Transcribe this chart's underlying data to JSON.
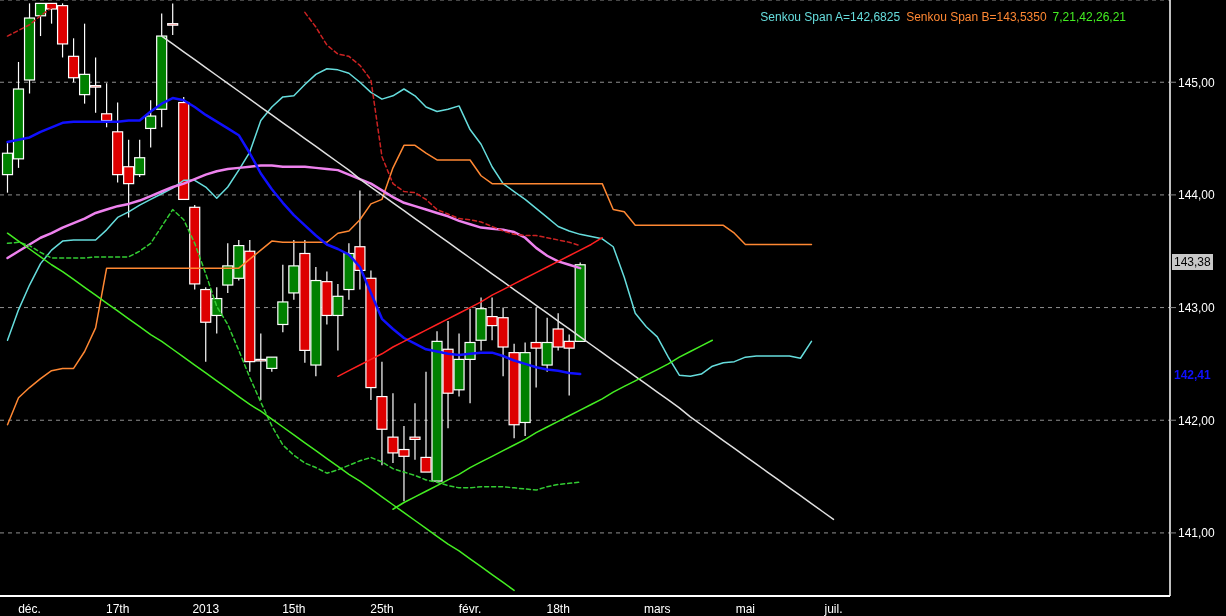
{
  "chart_data": {
    "type": "candlestick",
    "categories": [
      null,
      null,
      "déc.",
      null,
      null,
      null,
      null,
      null,
      null,
      null,
      "17th",
      null,
      null,
      null,
      null,
      null,
      null,
      null,
      "2013",
      null,
      null,
      null,
      null,
      null,
      null,
      null,
      "15th",
      null,
      null,
      null,
      null,
      null,
      null,
      null,
      "25th",
      null,
      null,
      null,
      null,
      null,
      null,
      null,
      "févr.",
      null,
      null,
      null,
      null,
      null,
      null,
      null,
      "18th",
      null,
      null,
      null,
      null,
      null,
      null,
      null,
      null,
      "mars",
      null,
      null,
      null,
      null,
      null,
      null,
      null,
      "mai",
      null,
      null,
      null,
      null,
      null,
      null,
      null,
      "juil."
    ],
    "ohlc": [
      [
        144.18,
        144.46,
        144.02,
        144.37
      ],
      [
        144.32,
        145.18,
        144.24,
        144.94
      ],
      [
        145.02,
        145.7,
        144.9,
        145.57
      ],
      [
        145.59,
        145.7,
        145.41,
        145.7
      ],
      [
        145.7,
        145.7,
        145.52,
        145.65
      ],
      [
        145.68,
        145.7,
        145.22,
        145.34
      ],
      [
        145.23,
        145.39,
        145.0,
        145.04
      ],
      [
        144.89,
        145.52,
        144.81,
        145.07
      ],
      [
        144.97,
        145.22,
        144.73,
        144.97
      ],
      [
        144.72,
        144.99,
        144.6,
        144.66
      ],
      [
        144.56,
        144.82,
        144.11,
        144.18
      ],
      [
        144.25,
        144.49,
        143.8,
        144.1
      ],
      [
        144.18,
        144.49,
        144.16,
        144.33
      ],
      [
        144.59,
        144.84,
        144.42,
        144.7
      ],
      [
        144.76,
        145.61,
        144.6,
        145.41
      ],
      [
        145.52,
        145.7,
        145.42,
        145.51
      ],
      [
        144.82,
        144.87,
        143.96,
        143.96
      ],
      [
        143.89,
        143.91,
        143.16,
        143.21
      ],
      [
        143.16,
        143.18,
        142.52,
        142.87
      ],
      [
        142.93,
        143.18,
        142.77,
        143.08
      ],
      [
        143.2,
        143.57,
        143.13,
        143.37
      ],
      [
        143.26,
        143.6,
        143.24,
        143.55
      ],
      [
        143.5,
        143.6,
        142.43,
        142.52
      ],
      [
        142.54,
        142.77,
        142.18,
        142.54
      ],
      [
        142.46,
        142.56,
        142.43,
        142.56
      ],
      [
        142.85,
        143.38,
        142.78,
        143.05
      ],
      [
        143.13,
        143.6,
        143.07,
        143.37
      ],
      [
        143.48,
        143.6,
        142.51,
        142.62
      ],
      [
        142.49,
        143.36,
        142.39,
        143.24
      ],
      [
        143.23,
        143.32,
        142.85,
        142.93
      ],
      [
        142.93,
        143.21,
        142.62,
        143.1
      ],
      [
        143.16,
        143.57,
        143.07,
        143.48
      ],
      [
        143.54,
        144.04,
        143.16,
        143.33
      ],
      [
        143.26,
        143.33,
        142.18,
        142.29
      ],
      [
        142.21,
        142.52,
        141.6,
        141.92
      ],
      [
        141.85,
        142.24,
        141.62,
        141.71
      ],
      [
        141.74,
        141.95,
        141.28,
        141.68
      ],
      [
        141.85,
        142.15,
        141.65,
        141.83
      ],
      [
        141.67,
        142.43,
        141.54,
        141.54
      ],
      [
        141.46,
        142.79,
        141.46,
        142.7
      ],
      [
        142.63,
        142.88,
        141.93,
        142.24
      ],
      [
        142.27,
        142.77,
        142.21,
        142.54
      ],
      [
        142.54,
        142.99,
        142.15,
        142.69
      ],
      [
        142.71,
        143.09,
        142.62,
        142.99
      ],
      [
        142.92,
        143.09,
        142.71,
        142.84
      ],
      [
        142.91,
        143.0,
        142.39,
        142.65
      ],
      [
        142.6,
        142.68,
        141.84,
        141.96
      ],
      [
        141.98,
        142.69,
        141.86,
        142.6
      ],
      [
        142.69,
        143.0,
        142.29,
        142.64
      ],
      [
        142.49,
        142.91,
        142.43,
        142.69
      ],
      [
        142.81,
        142.95,
        142.62,
        142.65
      ],
      [
        142.7,
        142.76,
        142.22,
        142.64
      ],
      [
        142.7,
        143.4,
        142.7,
        143.38
      ],
      null,
      null,
      null,
      null,
      null,
      null,
      null,
      null,
      null,
      null,
      null,
      null,
      null,
      null,
      null,
      null,
      null,
      null,
      null,
      null,
      null,
      null,
      null
    ],
    "colors": [
      "#008000",
      "#008000",
      "#008000",
      "#008000",
      "#dd0000",
      "#dd0000",
      "#dd0000",
      "#008000",
      "#dd0000",
      "#dd0000",
      "#dd0000",
      "#dd0000",
      "#008000",
      "#008000",
      "#008000",
      "#dd0000",
      "#dd0000",
      "#dd0000",
      "#dd0000",
      "#008000",
      "#008000",
      "#008000",
      "#dd0000",
      "#dd0000",
      "#008000",
      "#008000",
      "#008000",
      "#dd0000",
      "#008000",
      "#dd0000",
      "#008000",
      "#008000",
      "#dd0000",
      "#dd0000",
      "#dd0000",
      "#dd0000",
      "#dd0000",
      "#dd0000",
      "#dd0000",
      "#008000",
      "#dd0000",
      "#008000",
      "#008000",
      "#008000",
      "#dd0000",
      "#dd0000",
      "#dd0000",
      "#008000",
      "#dd0000",
      "#008000",
      "#dd0000",
      "#dd0000",
      "#008000",
      null,
      null,
      null,
      null,
      null,
      null,
      null,
      null,
      null,
      null,
      null,
      null,
      null,
      null,
      null,
      null,
      null,
      null,
      null,
      null,
      null,
      null,
      null
    ],
    "series": [
      {
        "type": "line",
        "name": "Senkou Span A=142,6825",
        "color": "#66dddd",
        "values": [
          142.71,
          142.98,
          143.2,
          143.39,
          143.51,
          143.59,
          143.6,
          143.6,
          143.6,
          143.69,
          143.8,
          143.85,
          143.91,
          143.96,
          144.01,
          144.06,
          144.13,
          144.13,
          144.07,
          143.97,
          144.07,
          144.22,
          144.38,
          144.66,
          144.78,
          144.87,
          144.88,
          144.98,
          145.07,
          145.12,
          145.11,
          145.08,
          145.0,
          144.91,
          144.85,
          144.88,
          144.94,
          144.88,
          144.78,
          144.74,
          144.76,
          144.79,
          144.58,
          144.45,
          144.25,
          144.1,
          144.03,
          143.96,
          143.88,
          143.8,
          143.72,
          143.68,
          143.65,
          143.63,
          143.61,
          143.54,
          143.27,
          142.95,
          142.83,
          142.74,
          142.56,
          142.4,
          142.39,
          142.41,
          142.48,
          142.51,
          142.52,
          142.56,
          142.57,
          142.57,
          142.57,
          142.57,
          142.55,
          142.7,
          null,
          null
        ]
      },
      {
        "type": "line",
        "name": "Senkou Span B=143,5350",
        "color": "#ff8833",
        "values": [
          141.96,
          142.2,
          142.29,
          142.37,
          142.44,
          142.46,
          142.46,
          142.61,
          142.82,
          143.35,
          143.35,
          143.35,
          143.35,
          143.35,
          143.35,
          143.35,
          143.35,
          143.35,
          143.35,
          143.35,
          143.35,
          143.35,
          143.43,
          143.51,
          143.59,
          143.58,
          143.58,
          143.58,
          143.58,
          143.58,
          143.66,
          143.68,
          143.78,
          143.92,
          143.96,
          144.24,
          144.44,
          144.44,
          144.37,
          144.31,
          144.31,
          144.31,
          144.31,
          144.17,
          144.1,
          144.1,
          144.1,
          144.1,
          144.1,
          144.1,
          144.1,
          144.1,
          144.1,
          144.1,
          144.1,
          143.87,
          143.85,
          143.73,
          143.73,
          143.73,
          143.73,
          143.73,
          143.73,
          143.73,
          143.73,
          143.73,
          143.66,
          143.56,
          143.56,
          143.56,
          143.56,
          143.56,
          143.56,
          143.56,
          null,
          null
        ]
      },
      {
        "type": "line",
        "color": "#ee82ee",
        "values": [
          143.44,
          143.5,
          143.56,
          143.62,
          143.66,
          143.71,
          143.75,
          143.79,
          143.84,
          143.87,
          143.9,
          143.92,
          143.95,
          143.99,
          144.03,
          144.07,
          144.1,
          144.14,
          144.18,
          144.21,
          144.23,
          144.24,
          144.25,
          144.26,
          144.26,
          144.25,
          144.25,
          144.25,
          144.24,
          144.23,
          144.22,
          144.18,
          144.14,
          144.1,
          144.04,
          143.98,
          143.93,
          143.9,
          143.87,
          143.84,
          143.81,
          143.77,
          143.74,
          143.71,
          143.7,
          143.69,
          143.67,
          143.62,
          143.53,
          143.46,
          143.41,
          143.38,
          143.35,
          null,
          null,
          null,
          null,
          null,
          null,
          null,
          null,
          null,
          null,
          null,
          null,
          null,
          null,
          null,
          null,
          null,
          null,
          null,
          null,
          null,
          null,
          null
        ]
      },
      {
        "type": "line",
        "color": "#1010ff",
        "values": [
          144.47,
          144.49,
          144.51,
          144.56,
          144.6,
          144.64,
          144.65,
          144.65,
          144.65,
          144.65,
          144.65,
          144.66,
          144.66,
          144.74,
          144.81,
          144.86,
          144.84,
          144.78,
          144.71,
          144.65,
          144.59,
          144.53,
          144.37,
          144.19,
          144.05,
          143.93,
          143.82,
          143.73,
          143.64,
          143.56,
          143.52,
          143.47,
          143.36,
          143.13,
          142.9,
          142.81,
          142.73,
          142.68,
          142.63,
          142.61,
          142.59,
          142.58,
          142.59,
          142.6,
          142.6,
          142.57,
          142.53,
          142.5,
          142.47,
          142.45,
          142.44,
          142.42,
          142.41,
          null,
          null,
          null,
          null,
          null,
          null,
          null,
          null,
          null,
          null,
          null,
          null,
          null,
          null,
          null,
          null,
          null,
          null,
          null,
          null,
          null,
          null,
          null
        ]
      },
      {
        "type": "line",
        "color": "#cc2222",
        "line_style": "dashed",
        "values": [
          145.41,
          145.46,
          145.51,
          145.59,
          145.66,
          null,
          null,
          null,
          null,
          null,
          null,
          null,
          null,
          null,
          null,
          null,
          null,
          null,
          null,
          null,
          null,
          null,
          null,
          null,
          null,
          null,
          null,
          145.62,
          145.49,
          145.33,
          145.25,
          145.23,
          145.15,
          145.02,
          144.34,
          144.1,
          144.03,
          144.02,
          143.96,
          143.87,
          143.83,
          143.79,
          143.78,
          143.76,
          143.72,
          143.68,
          143.65,
          143.64,
          143.64,
          143.62,
          143.6,
          143.58,
          143.55,
          null,
          null,
          null,
          null,
          null,
          null,
          null,
          null,
          null,
          null,
          null,
          null,
          null,
          null,
          null,
          null,
          null,
          null,
          null,
          null,
          null,
          null,
          null
        ]
      },
      {
        "type": "line",
        "color": "#33cc33",
        "line_style": "dashed",
        "values": [
          143.57,
          143.58,
          143.55,
          143.49,
          143.44,
          143.44,
          143.44,
          143.44,
          143.45,
          143.45,
          143.45,
          143.45,
          143.5,
          143.57,
          143.72,
          143.87,
          143.78,
          143.57,
          143.3,
          143.01,
          142.85,
          142.62,
          142.38,
          142.16,
          141.95,
          141.78,
          141.69,
          141.62,
          141.58,
          141.53,
          141.56,
          141.6,
          141.64,
          141.67,
          141.63,
          141.57,
          141.54,
          141.51,
          141.47,
          141.45,
          141.42,
          141.4,
          141.4,
          141.41,
          141.41,
          141.41,
          141.4,
          141.39,
          141.38,
          141.41,
          141.43,
          141.44,
          141.45,
          null,
          null,
          null,
          null,
          null,
          null,
          null,
          null,
          null,
          null,
          null,
          null,
          null,
          null,
          null,
          null,
          null,
          null,
          null,
          null,
          null,
          null,
          null
        ]
      },
      {
        "type": "line",
        "color": "#e0e0e0",
        "values": [
          null,
          null,
          null,
          null,
          null,
          null,
          null,
          null,
          null,
          null,
          null,
          null,
          null,
          null,
          145.41,
          145.34,
          145.27,
          145.2,
          145.13,
          145.06,
          144.99,
          144.92,
          144.85,
          144.78,
          144.71,
          144.64,
          144.57,
          144.5,
          144.43,
          144.36,
          144.29,
          144.22,
          144.14,
          144.07,
          144.0,
          143.93,
          143.86,
          143.79,
          143.72,
          143.65,
          143.58,
          143.51,
          143.44,
          143.37,
          143.3,
          143.23,
          143.16,
          143.09,
          143.02,
          142.95,
          142.88,
          142.81,
          142.74,
          142.67,
          142.6,
          142.53,
          142.46,
          142.39,
          142.32,
          142.25,
          142.18,
          142.11,
          142.03,
          141.96,
          141.89,
          141.82,
          141.75,
          141.68,
          141.61,
          141.54,
          141.47,
          141.4,
          141.33,
          141.26,
          141.19,
          141.12
        ]
      },
      {
        "type": "line",
        "color": "#44ee22",
        "values": [
          143.66,
          143.59,
          143.52,
          143.45,
          143.38,
          143.32,
          143.25,
          143.18,
          143.11,
          143.04,
          142.97,
          142.9,
          142.83,
          142.76,
          142.7,
          142.63,
          142.56,
          142.49,
          142.42,
          142.35,
          142.28,
          142.21,
          142.14,
          142.08,
          142.01,
          141.94,
          141.87,
          141.8,
          141.73,
          141.66,
          141.59,
          141.52,
          141.46,
          141.39,
          141.32,
          141.25,
          141.18,
          141.11,
          141.04,
          140.97,
          140.9,
          140.84,
          140.77,
          140.7,
          140.63,
          140.56,
          140.49,
          null,
          null,
          null,
          null,
          null,
          null,
          null,
          null,
          null,
          null,
          null,
          null,
          null,
          null,
          null,
          null,
          null,
          null,
          null,
          null,
          null,
          null,
          null,
          null,
          null,
          null,
          null,
          null,
          null
        ]
      },
      {
        "type": "line",
        "color": "#44ee22",
        "values": [
          null,
          null,
          null,
          null,
          null,
          null,
          null,
          null,
          null,
          null,
          null,
          null,
          null,
          null,
          null,
          null,
          null,
          null,
          null,
          null,
          null,
          null,
          null,
          null,
          null,
          null,
          null,
          null,
          null,
          null,
          null,
          null,
          null,
          null,
          null,
          141.21,
          141.27,
          141.32,
          141.37,
          141.42,
          141.47,
          141.52,
          141.58,
          141.63,
          141.68,
          141.73,
          141.78,
          141.83,
          141.89,
          141.94,
          141.99,
          142.04,
          142.09,
          142.14,
          142.19,
          142.25,
          142.3,
          142.35,
          142.4,
          142.45,
          142.5,
          142.56,
          142.61,
          142.66,
          142.71,
          null,
          null,
          null,
          null,
          null,
          null,
          null,
          null,
          null,
          null,
          null
        ]
      },
      {
        "type": "line",
        "color": "#ff2020",
        "values": [
          null,
          null,
          null,
          null,
          null,
          null,
          null,
          null,
          null,
          null,
          null,
          null,
          null,
          null,
          null,
          null,
          null,
          null,
          null,
          null,
          null,
          null,
          null,
          null,
          null,
          null,
          null,
          null,
          null,
          null,
          142.39,
          142.44,
          142.49,
          142.54,
          142.59,
          142.65,
          142.7,
          142.75,
          142.8,
          142.85,
          142.9,
          142.95,
          143.0,
          143.05,
          143.11,
          143.16,
          143.21,
          143.26,
          143.31,
          143.36,
          143.41,
          143.46,
          143.51,
          143.56,
          143.62,
          null,
          null,
          null,
          null,
          null,
          null,
          null,
          null,
          null,
          null,
          null,
          null,
          null,
          null,
          null,
          null,
          null,
          null,
          null,
          null,
          null
        ]
      }
    ],
    "ylim": [
      140.44,
      145.73
    ],
    "yticks": [
      {
        "value": 141,
        "label": "141,00"
      },
      {
        "value": 142,
        "label": "142,00"
      },
      {
        "value": 143,
        "label": "143,00"
      },
      {
        "value": 144,
        "label": "144,00"
      },
      {
        "value": 145,
        "label": "145,00"
      }
    ],
    "grid": "y",
    "legend": "top right",
    "annotations": [
      "7,21,42,26,21",
      "143,38",
      "142,41"
    ]
  }
}
